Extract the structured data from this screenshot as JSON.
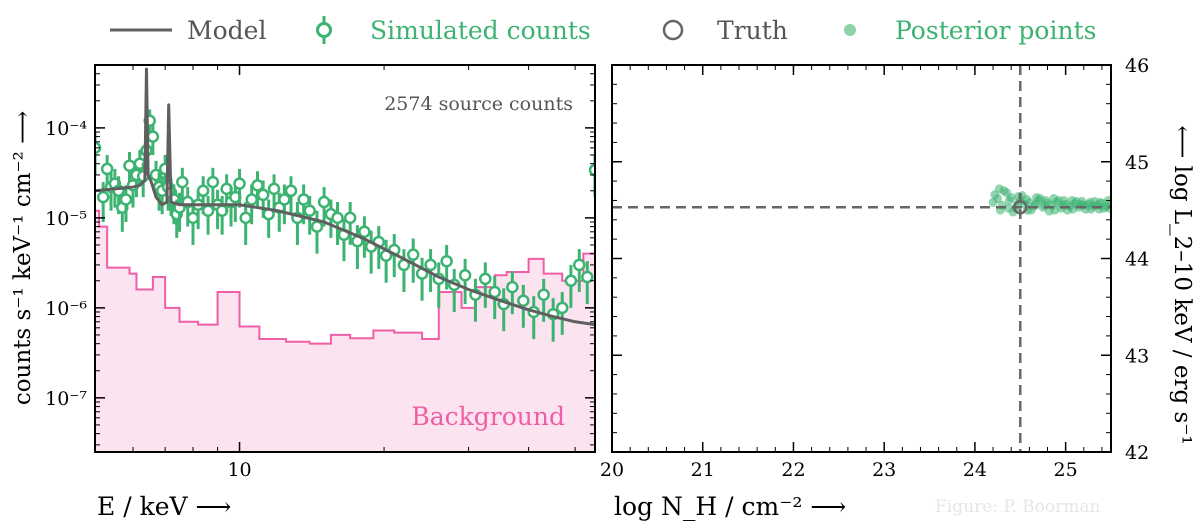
{
  "legend": {
    "items": [
      {
        "label": "Model",
        "color": "#666666",
        "marker": "line"
      },
      {
        "label": "Simulated counts",
        "color": "#3cb371",
        "marker": "errorbar-circle"
      },
      {
        "label": "Truth",
        "color": "#666666",
        "marker": "open-circle"
      },
      {
        "label": "Posterior points",
        "color": "#8fd3a8",
        "marker": "dot"
      }
    ],
    "placement": "top"
  },
  "colors": {
    "model": "#5f5f5f",
    "counts": "#3cb371",
    "background_line": "#ee5fa7",
    "background_fill": "#fbe3ef",
    "posterior": "#3cb371",
    "truth": "#666666",
    "axis": "#000000"
  },
  "chart_data": [
    {
      "type": "line",
      "panel": "left",
      "annotation": "2574 source counts",
      "background_label": "Background",
      "xlabel": "E / keV ⟶",
      "ylabel": "counts s⁻¹ keV⁻¹ cm⁻² ⟶",
      "xscale": "log",
      "yscale": "log",
      "xlim": [
        5.0,
        55.0
      ],
      "ylim": [
        2.5e-08,
        0.0005
      ],
      "xticks": [
        {
          "value": 10,
          "label": "10"
        }
      ],
      "yticks": [
        {
          "value": 1e-07,
          "label": "10⁻⁷"
        },
        {
          "value": 1e-06,
          "label": "10⁻⁶"
        },
        {
          "value": 1e-05,
          "label": "10⁻⁵"
        },
        {
          "value": 0.0001,
          "label": "10⁻⁴"
        }
      ],
      "grid": false,
      "series": [
        {
          "name": "Model",
          "kind": "line",
          "x": [
            5.0,
            5.5,
            6.0,
            6.2,
            6.35,
            6.4,
            6.45,
            6.55,
            6.7,
            6.9,
            7.06,
            7.12,
            7.2,
            7.5,
            8.0,
            9.0,
            10.0,
            12.0,
            15.0,
            18.0,
            22.0,
            26.0,
            30.0,
            35.0,
            40.0,
            45.0,
            50.0,
            55.0
          ],
          "y": [
            2e-05,
            2.1e-05,
            2.2e-05,
            2.3e-05,
            2.6e-05,
            0.00045,
            3e-05,
            2.5e-05,
            1.7e-05,
            1.4e-05,
            1.5e-05,
            0.00018,
            1.5e-05,
            1.4e-05,
            1.4e-05,
            1.4e-05,
            1.4e-05,
            1.2e-05,
            9e-06,
            6e-06,
            3.5e-06,
            2.2e-06,
            1.6e-06,
            1.2e-06,
            9.5e-07,
            8e-07,
            7e-07,
            6.5e-07
          ]
        },
        {
          "name": "Background",
          "kind": "step-area",
          "x": [
            5.0,
            5.1,
            5.3,
            5.9,
            6.1,
            6.6,
            7.0,
            7.5,
            8.2,
            9.0,
            10.0,
            11.0,
            12.5,
            14.0,
            15.5,
            17.0,
            19.0,
            21.0,
            24.0,
            26.0,
            29.0,
            31.0,
            34.0,
            36.0,
            40.0,
            43.0,
            47.0,
            52.0,
            55.0
          ],
          "y": [
            1.2e-05,
            8e-06,
            2.8e-06,
            2.4e-06,
            1.6e-06,
            2.2e-06,
            1e-06,
            7e-07,
            6.5e-07,
            1.5e-06,
            6.2e-07,
            4.5e-07,
            4.2e-07,
            4e-07,
            5e-07,
            4.6e-07,
            5.6e-07,
            5.3e-07,
            4.5e-07,
            1.5e-06,
            1e-06,
            1.7e-06,
            2.3e-06,
            2.5e-06,
            3.5e-06,
            2.4e-06,
            2e-06,
            4e-06,
            4e-06
          ]
        },
        {
          "name": "Simulated counts",
          "kind": "errorbar",
          "x": [
            5.0,
            5.2,
            5.3,
            5.4,
            5.5,
            5.6,
            5.7,
            5.8,
            5.9,
            6.0,
            6.1,
            6.2,
            6.3,
            6.4,
            6.5,
            6.6,
            6.7,
            6.8,
            6.9,
            7.0,
            7.1,
            7.2,
            7.3,
            7.4,
            7.5,
            7.6,
            7.8,
            8.0,
            8.2,
            8.4,
            8.6,
            8.8,
            9.0,
            9.2,
            9.4,
            9.6,
            9.8,
            10.0,
            10.3,
            10.6,
            10.9,
            11.2,
            11.5,
            11.8,
            12.1,
            12.4,
            12.8,
            13.2,
            13.6,
            14.0,
            14.5,
            15.0,
            15.5,
            16.0,
            16.5,
            17.0,
            17.6,
            18.2,
            18.8,
            19.5,
            20.2,
            21.0,
            22.0,
            23.0,
            24.0,
            25.0,
            26.0,
            27.0,
            28.0,
            29.5,
            31.0,
            32.5,
            34.0,
            35.5,
            37.0,
            39.0,
            41.0,
            43.0,
            45.0,
            47.0,
            49.0,
            51.0,
            53.0,
            55.0
          ],
          "y": [
            6e-05,
            1.7e-05,
            3.5e-05,
            2.2e-05,
            2.4e-05,
            2e-05,
            1.3e-05,
            1.6e-05,
            3.8e-05,
            2.3e-05,
            3e-05,
            4e-05,
            2.9e-05,
            5.6e-05,
            0.00012,
            8e-05,
            3e-05,
            2.2e-05,
            2e-05,
            3.5e-05,
            2.2e-05,
            1.9e-05,
            1.6e-05,
            1.1e-05,
            1.3e-05,
            2.5e-05,
            1.5e-05,
            1e-05,
            1.4e-05,
            2e-05,
            1.2e-05,
            2.5e-05,
            1.4e-05,
            1.2e-05,
            2.1e-05,
            1.5e-05,
            1.7e-05,
            2.4e-05,
            1e-05,
            1.6e-05,
            2.3e-05,
            1.8e-05,
            1.1e-05,
            2.1e-05,
            1.3e-05,
            1.6e-05,
            2e-05,
            1e-05,
            1.6e-05,
            1.2e-05,
            8e-06,
            1.5e-05,
            1.1e-05,
            1e-05,
            6.5e-06,
            1e-05,
            5.5e-06,
            7e-06,
            4.8e-06,
            5.4e-06,
            3.8e-06,
            4.4e-06,
            3e-06,
            3.9e-06,
            2.4e-06,
            3e-06,
            2.1e-06,
            3.3e-06,
            1.8e-06,
            2.3e-06,
            1.4e-06,
            2.1e-06,
            1.5e-06,
            1.1e-06,
            1.7e-06,
            1.2e-06,
            9e-07,
            1.4e-06,
            8.5e-07,
            1e-06,
            2e-06,
            3e-06,
            2.2e-06,
            3.4e-05
          ],
          "err_low": [
            3e-05,
            8e-06,
            1.5e-05,
            1e-05,
            1.1e-05,
            9e-06,
            6e-06,
            7e-06,
            1.6e-05,
            1e-05,
            1.3e-05,
            1.7e-05,
            1.2e-05,
            2.2e-05,
            4e-05,
            3e-05,
            1.3e-05,
            1e-05,
            9e-06,
            1.5e-05,
            1e-05,
            8.5e-06,
            7.5e-06,
            5e-06,
            6e-06,
            1.1e-05,
            7e-06,
            5e-06,
            6.5e-06,
            9e-06,
            5.5e-06,
            1.1e-05,
            6.5e-06,
            5.5e-06,
            9.5e-06,
            7e-06,
            8e-06,
            1.1e-05,
            5e-06,
            7.5e-06,
            1e-05,
            8e-06,
            5e-06,
            9.5e-06,
            6e-06,
            7.5e-06,
            9e-06,
            5e-06,
            7.5e-06,
            5.5e-06,
            4e-06,
            7e-06,
            5e-06,
            5e-06,
            3.2e-06,
            5e-06,
            2.8e-06,
            3.4e-06,
            2.4e-06,
            2.7e-06,
            1.9e-06,
            2.2e-06,
            1.5e-06,
            2e-06,
            1.2e-06,
            1.5e-06,
            1.1e-06,
            1.7e-06,
            9e-07,
            1.2e-06,
            7e-07,
            1.1e-06,
            7.5e-07,
            5.5e-07,
            8.5e-07,
            6e-07,
            4.5e-07,
            7e-07,
            4.3e-07,
            5e-07,
            1e-06,
            1.5e-06,
            1.1e-06,
            1.7e-05
          ],
          "err_high": [
            3e-05,
            8e-06,
            1.5e-05,
            1e-05,
            1.1e-05,
            9e-06,
            6e-06,
            7e-06,
            1.6e-05,
            1e-05,
            1.3e-05,
            1.7e-05,
            1.2e-05,
            2.2e-05,
            4e-05,
            3e-05,
            1.3e-05,
            1e-05,
            9e-06,
            1.5e-05,
            1e-05,
            8.5e-06,
            7.5e-06,
            5e-06,
            6e-06,
            1.1e-05,
            7e-06,
            5e-06,
            6.5e-06,
            9e-06,
            5.5e-06,
            1.1e-05,
            6.5e-06,
            5.5e-06,
            9.5e-06,
            7e-06,
            8e-06,
            1.1e-05,
            5e-06,
            7.5e-06,
            1e-05,
            8e-06,
            5e-06,
            9.5e-06,
            6e-06,
            7.5e-06,
            9e-06,
            5e-06,
            7.5e-06,
            5.5e-06,
            4e-06,
            7e-06,
            5e-06,
            5e-06,
            3.2e-06,
            5e-06,
            2.8e-06,
            3.4e-06,
            2.4e-06,
            2.7e-06,
            1.9e-06,
            2.2e-06,
            1.5e-06,
            2e-06,
            1.2e-06,
            1.5e-06,
            1.1e-06,
            1.7e-06,
            9e-07,
            1.2e-06,
            7e-07,
            1.1e-06,
            7.5e-07,
            5.5e-07,
            8.5e-07,
            6e-07,
            4.5e-07,
            7e-07,
            4.3e-07,
            5e-07,
            1e-06,
            1.5e-06,
            1.1e-06,
            1.7e-05
          ]
        }
      ]
    },
    {
      "type": "scatter",
      "panel": "right",
      "xlabel": "log N_H / cm⁻² ⟶",
      "ylabel": "⟵ log L_2–10 keV / erg s⁻¹",
      "xlim": [
        20.0,
        25.5
      ],
      "ylim": [
        42.0,
        46.0
      ],
      "xticks": [
        20,
        21,
        22,
        23,
        24,
        25
      ],
      "yticks": [
        42,
        43,
        44,
        45,
        46
      ],
      "y_axis_side": "right",
      "grid": false,
      "truth": {
        "x": 24.5,
        "y": 44.53
      },
      "reference_lines": {
        "x": 24.5,
        "y": 44.53,
        "style": "dashed"
      },
      "series": [
        {
          "name": "Posterior points",
          "kind": "points",
          "x": [
            24.2,
            24.25,
            24.3,
            24.35,
            24.4,
            24.45,
            24.5,
            24.55,
            24.6,
            24.65,
            24.7,
            24.75,
            24.8,
            24.85,
            24.9,
            24.95,
            25.0,
            25.05,
            25.1,
            25.15,
            25.2,
            25.25,
            25.3,
            25.35,
            25.4,
            25.45,
            25.5,
            24.22,
            24.32,
            24.42,
            24.52,
            24.62,
            24.72,
            24.82,
            24.92,
            25.02,
            25.12,
            25.22,
            25.32,
            25.42,
            24.28,
            24.38,
            24.48,
            24.58,
            24.68,
            24.78,
            24.88,
            24.98,
            25.08,
            25.18,
            25.28,
            25.38,
            25.48,
            24.27,
            24.37,
            24.47,
            24.57,
            24.67,
            24.77,
            24.87,
            24.97,
            25.07,
            25.17,
            25.27,
            25.37,
            25.47
          ],
          "y": [
            44.58,
            44.62,
            44.55,
            44.68,
            44.63,
            44.52,
            44.6,
            44.56,
            44.58,
            44.54,
            44.6,
            44.53,
            44.57,
            44.55,
            44.58,
            44.52,
            44.56,
            44.54,
            44.57,
            44.53,
            44.55,
            44.56,
            44.54,
            44.55,
            44.57,
            44.54,
            44.56,
            44.66,
            44.7,
            44.48,
            44.65,
            44.5,
            44.62,
            44.49,
            44.6,
            44.5,
            44.59,
            44.51,
            44.59,
            44.52,
            44.5,
            44.6,
            44.64,
            44.5,
            44.63,
            44.6,
            44.5,
            44.6,
            44.51,
            44.59,
            44.51,
            44.58,
            44.52,
            44.72,
            44.52,
            44.56,
            44.61,
            44.56,
            44.55,
            44.62,
            44.55,
            44.6,
            44.56,
            44.58,
            44.51,
            44.6
          ]
        }
      ]
    }
  ],
  "credit": "Figure: P. Boorman"
}
